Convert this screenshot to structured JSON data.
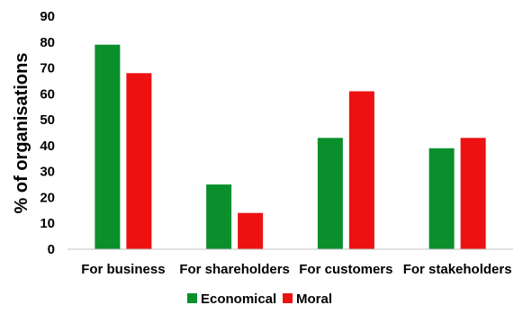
{
  "chart_data": {
    "type": "bar",
    "title": "",
    "xlabel": "",
    "ylabel": "% of organisations",
    "ylim": [
      0,
      90
    ],
    "yticks": [
      0,
      10,
      20,
      30,
      40,
      50,
      60,
      70,
      80,
      90
    ],
    "grid": false,
    "legend_position": "bottom",
    "categories": [
      "For business",
      "For shareholders",
      "For customers",
      "For stakeholders"
    ],
    "series": [
      {
        "name": "Economical",
        "color": "#0a8f2c",
        "values": [
          79,
          25,
          43,
          39
        ]
      },
      {
        "name": "Moral",
        "color": "#ee1111",
        "values": [
          68,
          14,
          61,
          43
        ]
      }
    ]
  }
}
